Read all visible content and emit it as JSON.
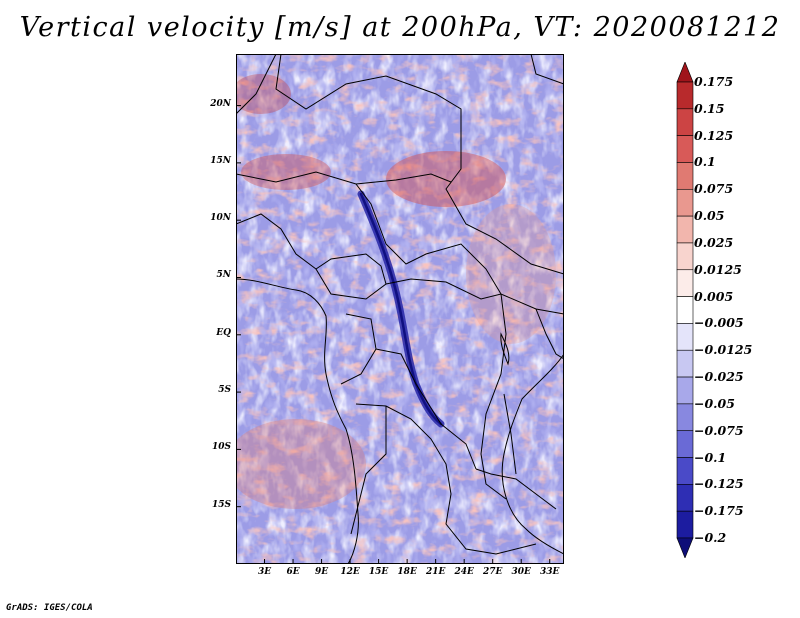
{
  "title": "Vertical velocity [m/s] at 200hPa, VT: 2020081212",
  "credit": "GrADS: IGES/COLA",
  "map": {
    "lat_range": [
      -20,
      24.5
    ],
    "lon_range": [
      0,
      34.5
    ],
    "lat_labels": [
      {
        "lat": 20,
        "text": "20N"
      },
      {
        "lat": 15,
        "text": "15N"
      },
      {
        "lat": 10,
        "text": "10N"
      },
      {
        "lat": 5,
        "text": "5N"
      },
      {
        "lat": 0,
        "text": "EQ"
      },
      {
        "lat": -5,
        "text": "5S"
      },
      {
        "lat": -10,
        "text": "10S"
      },
      {
        "lat": -15,
        "text": "15S"
      }
    ],
    "lon_labels": [
      {
        "lon": 3,
        "text": "3E"
      },
      {
        "lon": 6,
        "text": "6E"
      },
      {
        "lon": 9,
        "text": "9E"
      },
      {
        "lon": 12,
        "text": "12E"
      },
      {
        "lon": 15,
        "text": "15E"
      },
      {
        "lon": 18,
        "text": "18E"
      },
      {
        "lon": 21,
        "text": "21E"
      },
      {
        "lon": 24,
        "text": "24E"
      },
      {
        "lon": 27,
        "text": "27E"
      },
      {
        "lon": 30,
        "text": "30E"
      },
      {
        "lon": 33,
        "text": "33E"
      }
    ]
  },
  "colorbar": {
    "levels": [
      "0.175",
      "0.15",
      "0.125",
      "0.1",
      "0.075",
      "0.05",
      "0.025",
      "0.0125",
      "0.005",
      "−0.005",
      "−0.0125",
      "−0.025",
      "−0.05",
      "−0.075",
      "−0.1",
      "−0.125",
      "−0.175",
      "−0.2"
    ],
    "colors": [
      "#a0141b",
      "#b82a2c",
      "#cc4444",
      "#d85a58",
      "#e07a72",
      "#e9988f",
      "#f2b6ad",
      "#f8d4ce",
      "#fcece9",
      "#ffffff",
      "#e4e4fa",
      "#c8c8f2",
      "#a8a8ea",
      "#8888e0",
      "#6a6ad6",
      "#4a4ac8",
      "#2e2eb4",
      "#1c1ca0",
      "#0e0e78"
    ]
  }
}
